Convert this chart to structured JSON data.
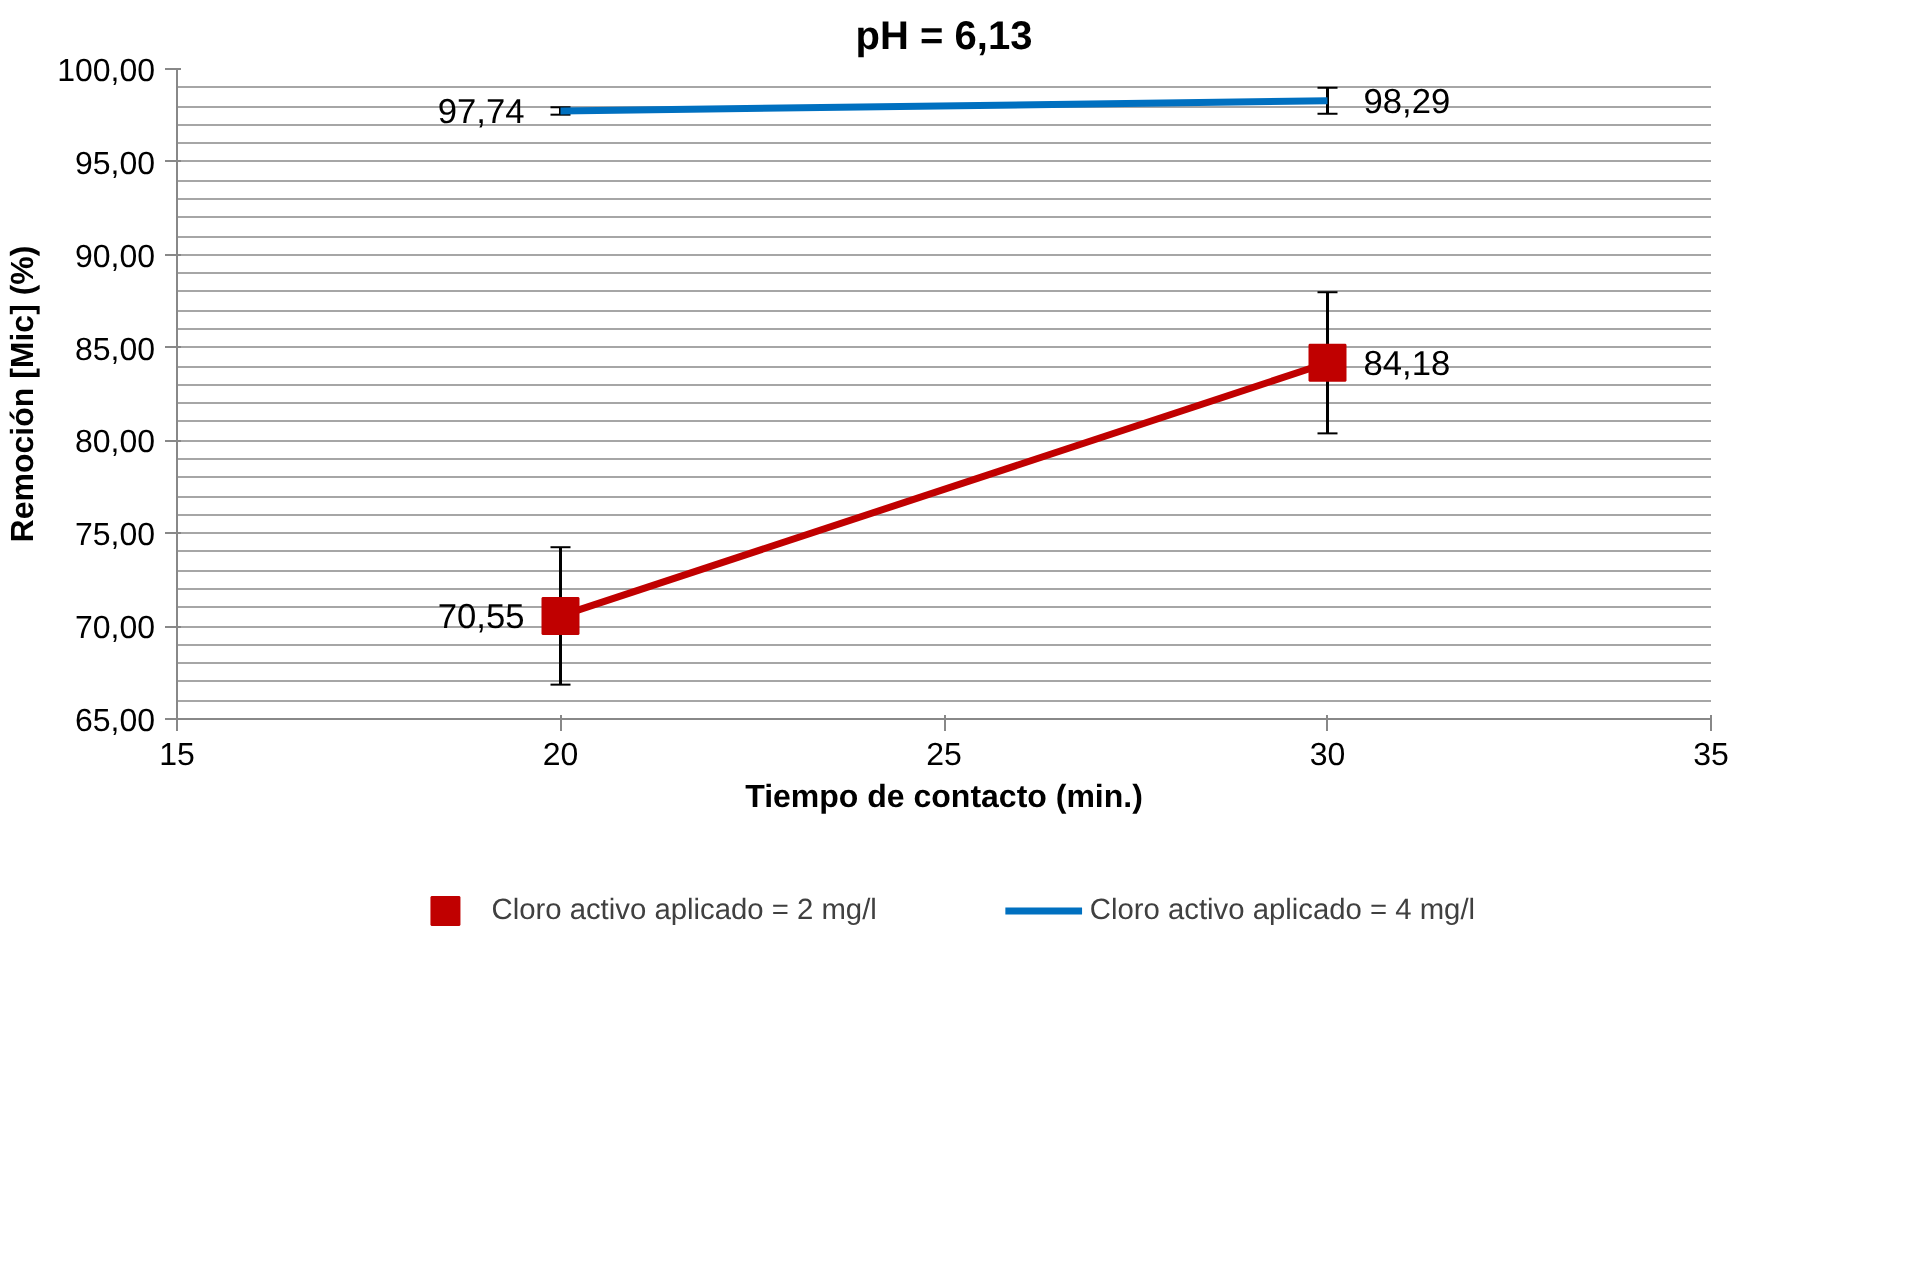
{
  "chart_data": {
    "type": "line",
    "title": "pH = 6,13",
    "xlabel": "Tiempo de contacto (min.)",
    "ylabel": "Remoción [Mic] (%)",
    "xlim": [
      15,
      35
    ],
    "xticks": [
      15,
      20,
      25,
      30,
      35
    ],
    "ylim": [
      65,
      100
    ],
    "yticks": [
      {
        "value": 65,
        "label": "65,00"
      },
      {
        "value": 70,
        "label": "70,00"
      },
      {
        "value": 75,
        "label": "75,00"
      },
      {
        "value": 80,
        "label": "80,00"
      },
      {
        "value": 85,
        "label": "85,00"
      },
      {
        "value": 90,
        "label": "90,00"
      },
      {
        "value": 95,
        "label": "95,00"
      },
      {
        "value": 100,
        "label": "100,00"
      }
    ],
    "grid": "y",
    "legend": "bottom",
    "x": [
      20,
      30
    ],
    "series": [
      {
        "name": "Cloro activo aplicado = 2 mg/l",
        "color": "#c00000",
        "values": [
          70.55,
          84.18
        ],
        "errors": [
          3.7,
          3.8
        ],
        "marker": "square",
        "value_labels": [
          "70,55",
          "84,18"
        ]
      },
      {
        "name": "Cloro activo aplicado = 4 mg/l",
        "color": "#0070c0",
        "values": [
          97.74,
          98.29
        ],
        "errors": [
          0.2,
          0.7
        ],
        "marker": "none",
        "value_labels": [
          "97,74",
          "98,29"
        ]
      }
    ]
  }
}
